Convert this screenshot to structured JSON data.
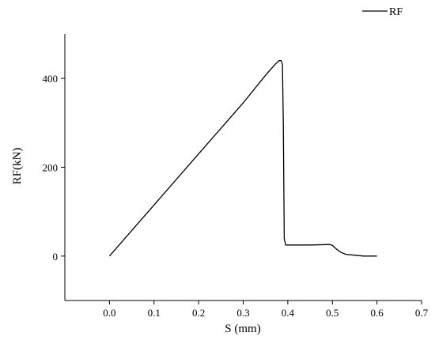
{
  "chart_data": {
    "type": "line",
    "xlabel": "S (mm)",
    "ylabel": "RF(kN)",
    "xlim": [
      -0.1,
      0.7
    ],
    "ylim": [
      -100,
      500
    ],
    "xticks": [
      {
        "value": 0.0,
        "label": "0.0"
      },
      {
        "value": 0.1,
        "label": "0.1"
      },
      {
        "value": 0.2,
        "label": "0.2"
      },
      {
        "value": 0.3,
        "label": "0.3"
      },
      {
        "value": 0.4,
        "label": "0.4"
      },
      {
        "value": 0.5,
        "label": "0.5"
      },
      {
        "value": 0.6,
        "label": "0.6"
      },
      {
        "value": 0.7,
        "label": "0.7"
      }
    ],
    "yticks": [
      {
        "value": 0,
        "label": "0"
      },
      {
        "value": 200,
        "label": "200"
      },
      {
        "value": 400,
        "label": "400"
      }
    ],
    "grid": false,
    "legend": {
      "position": "top-right"
    },
    "series": [
      {
        "name": "RF",
        "color": "#000000",
        "x": [
          0.0,
          0.1,
          0.2,
          0.3,
          0.35,
          0.37,
          0.38,
          0.385,
          0.388,
          0.39,
          0.392,
          0.395,
          0.45,
          0.495,
          0.5,
          0.51,
          0.52,
          0.53,
          0.55,
          0.57,
          0.6
        ],
        "y": [
          0,
          115,
          230,
          345,
          407,
          430,
          440,
          440,
          432,
          300,
          40,
          25,
          25,
          26,
          24,
          15,
          8,
          4,
          2,
          0,
          0
        ]
      }
    ]
  }
}
